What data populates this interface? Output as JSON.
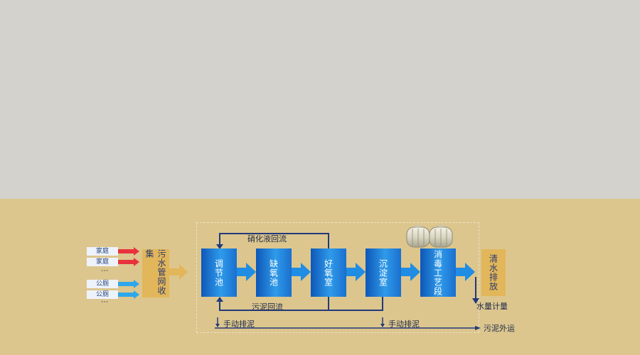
{
  "sources": {
    "household_1": "家庭",
    "household_2": "家庭",
    "dots_1": "⋮",
    "public_toilet_1": "公厕",
    "public_toilet_2": "公厕",
    "dots_2": "⋮"
  },
  "collection": "污水管网收集",
  "units": [
    {
      "label": "调节池"
    },
    {
      "label": "缺氧池"
    },
    {
      "label": "好氧室"
    },
    {
      "label": "沉淀室"
    },
    {
      "label": "消毒工艺段"
    }
  ],
  "discharge": "清水排放",
  "flows": {
    "nitrification_reflux": "硝化液回流",
    "sludge_reflux": "污泥回流",
    "manual_sludge_1": "手动排泥",
    "manual_sludge_2": "手动排泥",
    "water_metering": "水量计量",
    "sludge_export": "污泥外运"
  },
  "colors": {
    "household_arrow": "#e8333c",
    "public_arrow": "#2ea7ea",
    "unit_blue": "#1a78d8",
    "box_gold": "#e2b65a",
    "line_navy": "#233a7a"
  }
}
